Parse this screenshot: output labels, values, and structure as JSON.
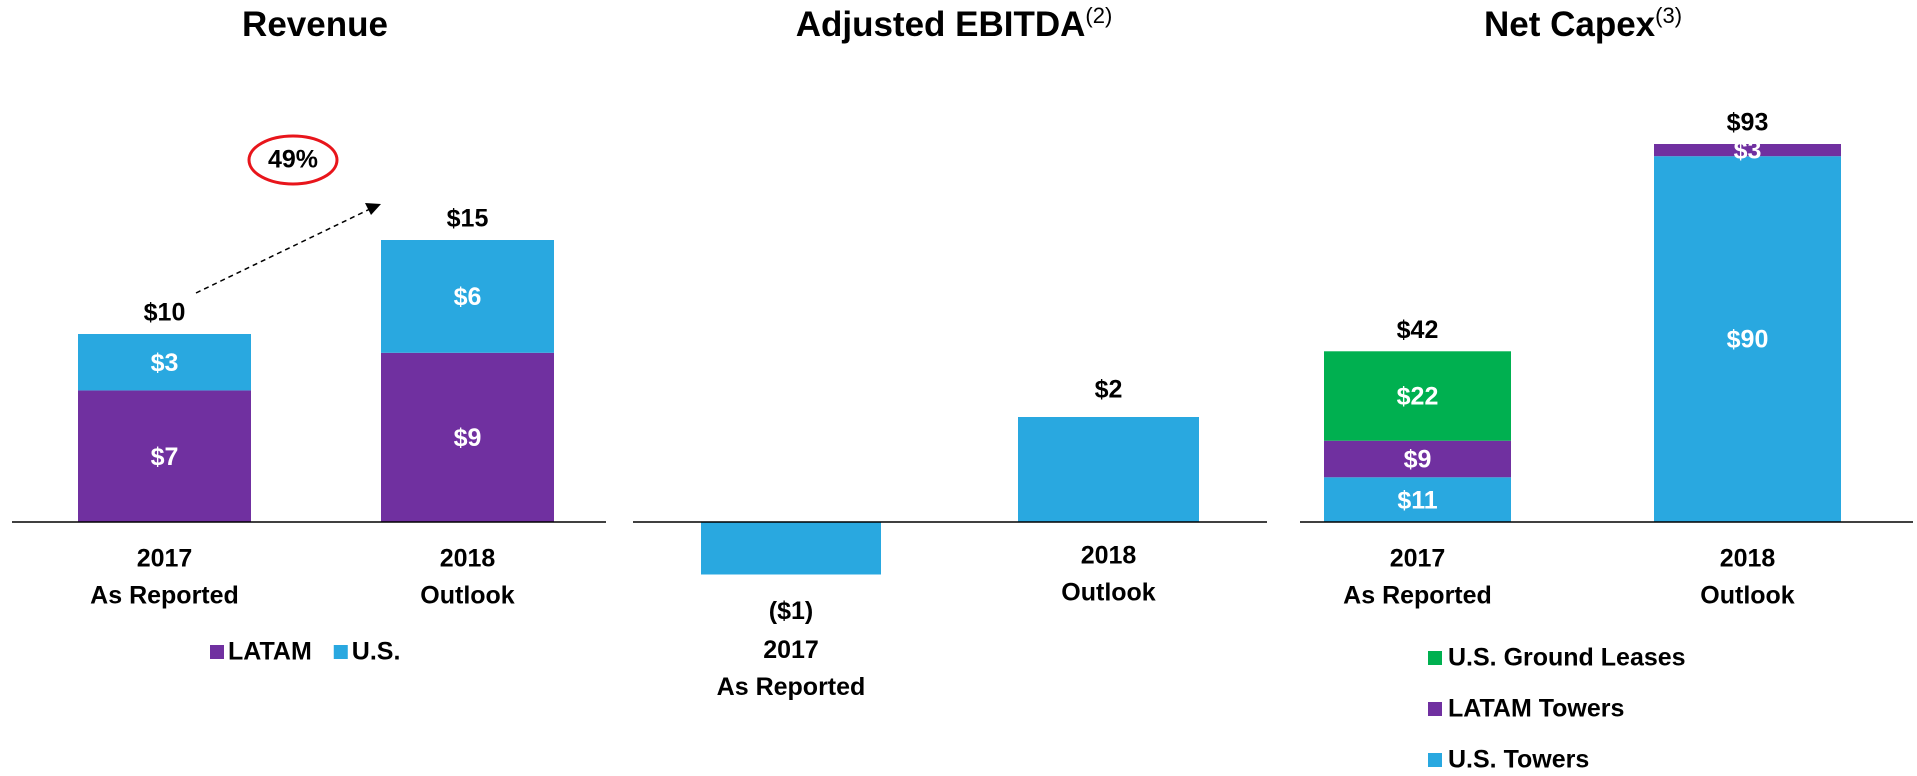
{
  "chart_data": [
    {
      "type": "stacked_bar",
      "title": "Revenue",
      "categories": [
        [
          "2017",
          "As Reported"
        ],
        [
          "2018",
          "Outlook"
        ]
      ],
      "series": [
        {
          "name": "LATAM",
          "color": "#7030a0",
          "values": [
            7,
            9
          ],
          "value_labels": [
            "$7",
            "$9"
          ]
        },
        {
          "name": "U.S.",
          "color": "#29a8e0",
          "values": [
            3,
            6
          ],
          "value_labels": [
            "$3",
            "$6"
          ]
        }
      ],
      "totals": [
        10,
        15
      ],
      "total_labels": [
        "$10",
        "$15"
      ],
      "annotation": "49%",
      "legend": "bottom-horizontal"
    },
    {
      "type": "bar",
      "title": "Adjusted EBITDA",
      "title_note": "(2)",
      "categories": [
        [
          "2017",
          "As Reported"
        ],
        [
          "2018",
          "Outlook"
        ]
      ],
      "values": [
        -1,
        2
      ],
      "value_labels": [
        "($1)",
        "$2"
      ],
      "color": "#29a8e0"
    },
    {
      "type": "stacked_bar",
      "title": "Net Capex",
      "title_note": "(3)",
      "categories": [
        [
          "2017",
          "As Reported"
        ],
        [
          "2018",
          "Outlook"
        ]
      ],
      "series": [
        {
          "name": "U.S. Towers",
          "color": "#29a8e0",
          "values": [
            11,
            90
          ],
          "value_labels": [
            "$11",
            "$90"
          ]
        },
        {
          "name": "LATAM Towers",
          "color": "#7030a0",
          "values": [
            9,
            3
          ],
          "value_labels": [
            "$9",
            "$3"
          ]
        },
        {
          "name": "U.S. Ground Leases",
          "color": "#00b050",
          "values": [
            22,
            null
          ],
          "value_labels": [
            "$22",
            null
          ]
        }
      ],
      "totals": [
        42,
        93
      ],
      "total_labels": [
        "$42",
        "$93"
      ],
      "legend": "bottom-vertical"
    }
  ]
}
